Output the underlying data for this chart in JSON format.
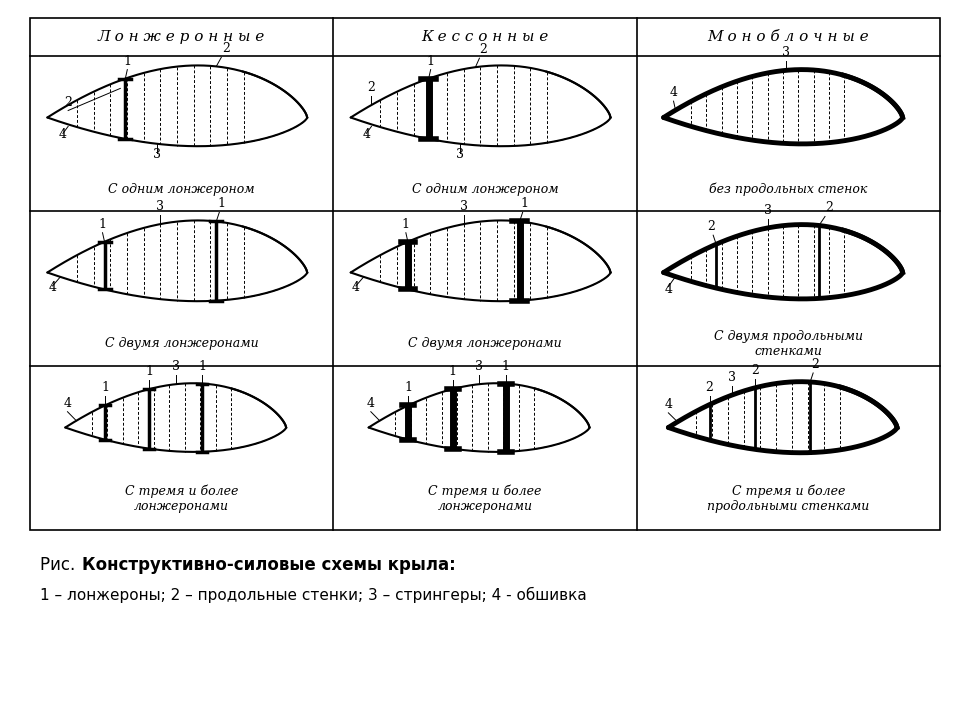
{
  "title_plain": "Рис.  ",
  "title_bold": "Конструктивно-силовые схемы крыла:",
  "subtitle": "1 – лонжероны; 2 – продольные стенки; 3 – стрингеры; 4 - обшивка",
  "col_headers": [
    "Л о н ж е р о н н ы е",
    "К е с с о н н ы е",
    "М о н о б л о ч н ы е"
  ],
  "row_labels": [
    [
      "С одним лонжероном",
      "С одним лонжероном",
      "без продольных стенок"
    ],
    [
      "С двумя лонжеронами",
      "С двумя лонжеронами",
      "С двумя продольными\nстенками"
    ],
    [
      "С тремя и более\nлонжеронами",
      "С тремя и более\nлонжеронами",
      "С тремя и более\nпродольными стенками"
    ]
  ],
  "bg_color": "#ffffff",
  "line_color": "#000000"
}
